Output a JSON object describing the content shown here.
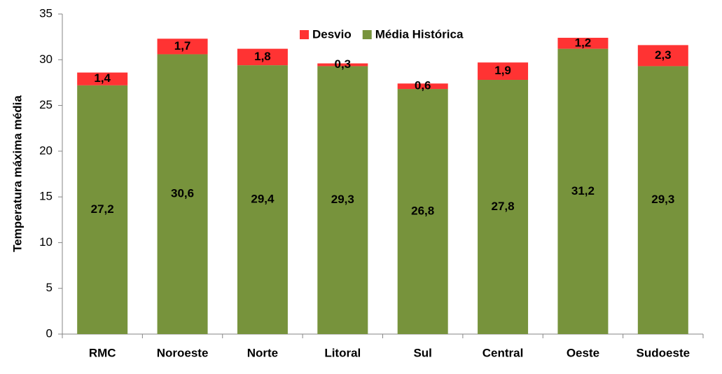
{
  "chart_data": {
    "type": "bar",
    "stacked": true,
    "categories": [
      "RMC",
      "Noroeste",
      "Norte",
      "Litoral",
      "Sul",
      "Central",
      "Oeste",
      "Sudoeste"
    ],
    "series": [
      {
        "name": "Média Histórica",
        "color": "#77933C",
        "values": [
          27.2,
          30.6,
          29.4,
          29.3,
          26.8,
          27.8,
          31.2,
          29.3
        ],
        "labels": [
          "27,2",
          "30,6",
          "29,4",
          "29,3",
          "26,8",
          "27,8",
          "31,2",
          "29,3"
        ]
      },
      {
        "name": "Desvio",
        "color": "#FF3333",
        "values": [
          1.4,
          1.7,
          1.8,
          0.3,
          0.6,
          1.9,
          1.2,
          2.3
        ],
        "labels": [
          "1,4",
          "1,7",
          "1,8",
          "0,3",
          "0,6",
          "1,9",
          "1,2",
          "2,3"
        ]
      }
    ],
    "legend_order": [
      "Desvio",
      "Média Histórica"
    ],
    "legend_position": "top-center",
    "title": "",
    "xlabel": "",
    "ylabel": "Temperatura máxima média",
    "ylim": [
      0,
      35
    ],
    "yticks": [
      0,
      5,
      10,
      15,
      20,
      25,
      30,
      35
    ],
    "grid": false
  }
}
